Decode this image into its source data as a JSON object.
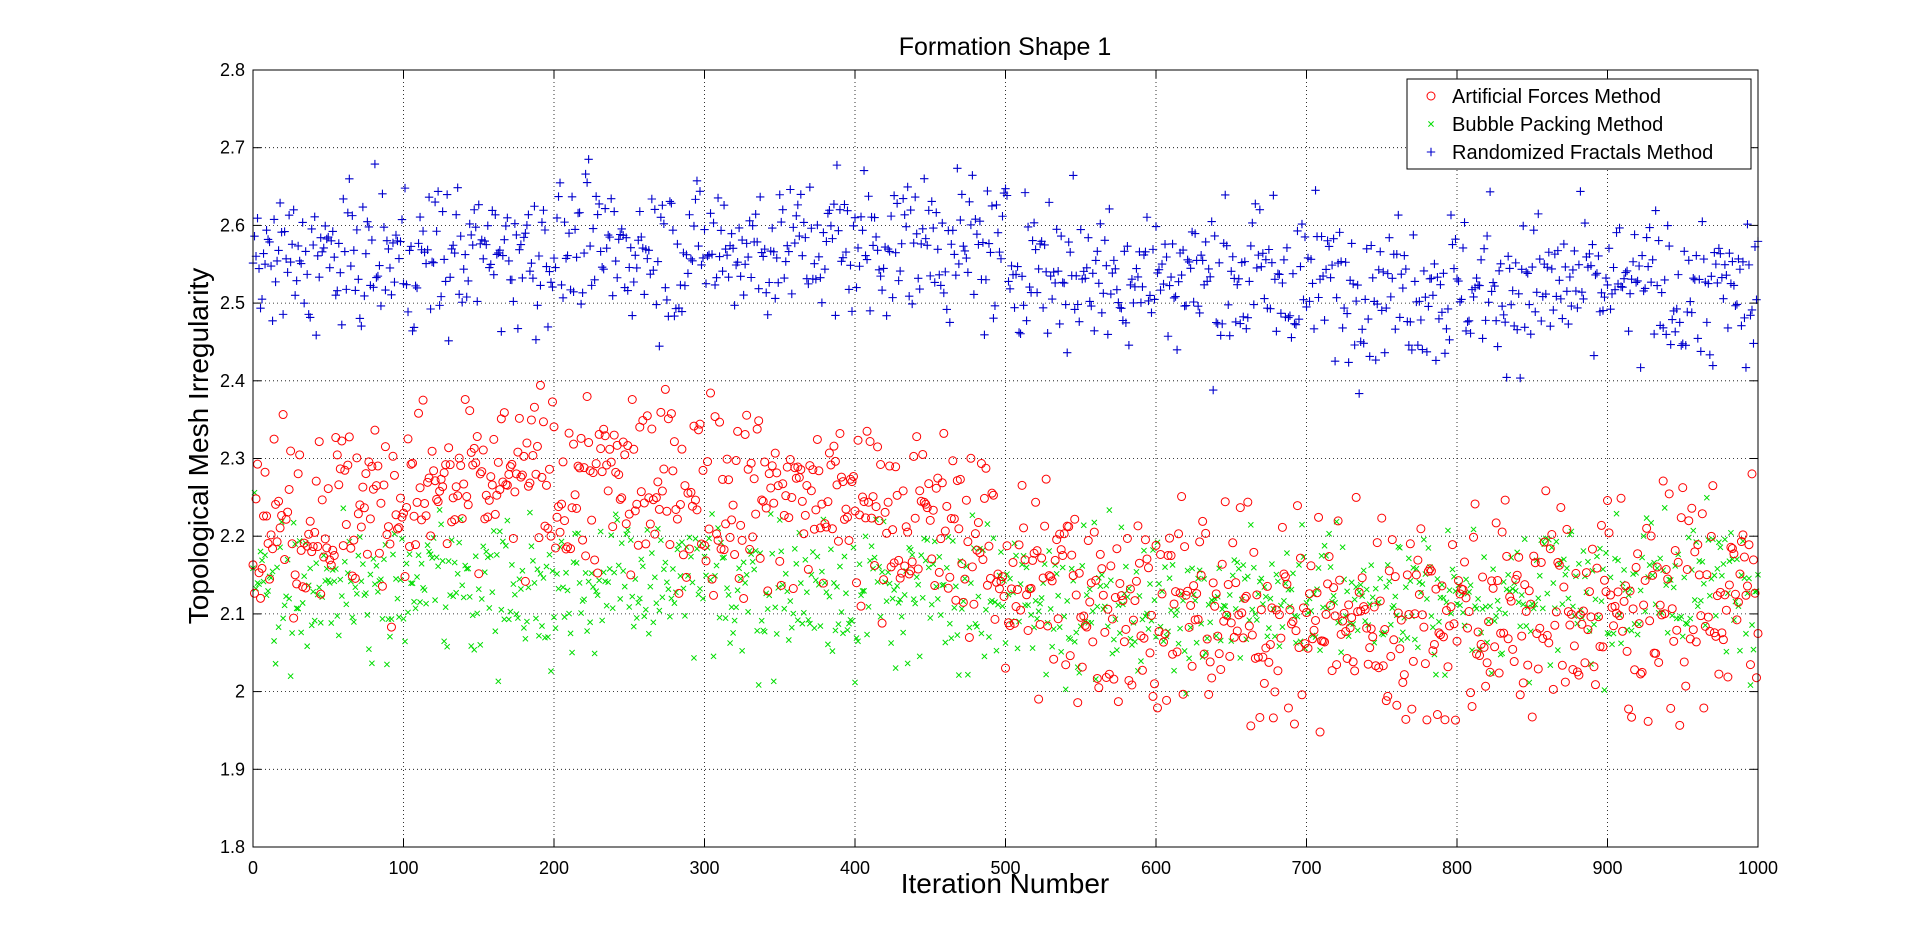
{
  "chart_data": {
    "type": "scatter",
    "title": "Formation Shape 1",
    "xlabel": "Iteration Number",
    "ylabel": "Topological Mesh Irregularity",
    "xlim": [
      0,
      1000
    ],
    "ylim": [
      1.8,
      2.8
    ],
    "xticks": [
      0,
      100,
      200,
      300,
      400,
      500,
      600,
      700,
      800,
      900,
      1000
    ],
    "yticks": [
      1.8,
      1.9,
      2.0,
      2.1,
      2.2,
      2.3,
      2.4,
      2.5,
      2.6,
      2.7,
      2.8
    ],
    "grid": true,
    "legend_position": "top-right",
    "series": [
      {
        "name": "Artificial Forces Method",
        "marker": "circle",
        "color": "#ff0000",
        "trend": [
          [
            0,
            2.22
          ],
          [
            100,
            2.25
          ],
          [
            200,
            2.27
          ],
          [
            300,
            2.26
          ],
          [
            400,
            2.24
          ],
          [
            480,
            2.2
          ],
          [
            500,
            2.15
          ],
          [
            600,
            2.11
          ],
          [
            700,
            2.09
          ],
          [
            800,
            2.1
          ],
          [
            900,
            2.11
          ],
          [
            1000,
            2.13
          ]
        ],
        "spread": [
          [
            0,
            0.11
          ],
          [
            450,
            0.11
          ],
          [
            500,
            0.12
          ],
          [
            1000,
            0.13
          ]
        ],
        "y_range": [
          [
            0,
            2.0,
            2.36
          ],
          [
            200,
            2.0,
            2.41
          ],
          [
            400,
            2.05,
            2.4
          ],
          [
            480,
            2.05,
            2.37
          ],
          [
            500,
            1.98,
            2.31
          ],
          [
            600,
            1.97,
            2.27
          ],
          [
            700,
            1.94,
            2.25
          ],
          [
            800,
            1.95,
            2.25
          ],
          [
            900,
            1.95,
            2.28
          ],
          [
            1000,
            1.95,
            2.29
          ]
        ]
      },
      {
        "name": "Bubble Packing Method",
        "marker": "x",
        "color": "#00dd00",
        "trend": [
          [
            0,
            2.14
          ],
          [
            200,
            2.14
          ],
          [
            400,
            2.13
          ],
          [
            500,
            2.12
          ],
          [
            600,
            2.11
          ],
          [
            700,
            2.12
          ],
          [
            800,
            2.12
          ],
          [
            900,
            2.13
          ],
          [
            1000,
            2.15
          ]
        ],
        "spread": [
          [
            0,
            0.08
          ],
          [
            1000,
            0.08
          ]
        ],
        "y_range": [
          [
            0,
            1.99,
            2.29
          ],
          [
            500,
            1.98,
            2.28
          ],
          [
            1000,
            1.96,
            2.28
          ]
        ]
      },
      {
        "name": "Randomized Fractals Method",
        "marker": "plus",
        "color": "#0000cc",
        "trend": [
          [
            0,
            2.55
          ],
          [
            200,
            2.57
          ],
          [
            300,
            2.57
          ],
          [
            450,
            2.58
          ],
          [
            550,
            2.54
          ],
          [
            700,
            2.53
          ],
          [
            800,
            2.52
          ],
          [
            900,
            2.52
          ],
          [
            1000,
            2.51
          ]
        ],
        "spread": [
          [
            0,
            0.08
          ],
          [
            1000,
            0.09
          ]
        ],
        "y_range": [
          [
            0,
            2.41,
            2.72
          ],
          [
            250,
            2.41,
            2.74
          ],
          [
            450,
            2.42,
            2.73
          ],
          [
            550,
            2.39,
            2.7
          ],
          [
            700,
            2.38,
            2.68
          ],
          [
            800,
            2.37,
            2.68
          ],
          [
            900,
            2.36,
            2.67
          ],
          [
            1000,
            2.36,
            2.66
          ]
        ]
      }
    ]
  }
}
